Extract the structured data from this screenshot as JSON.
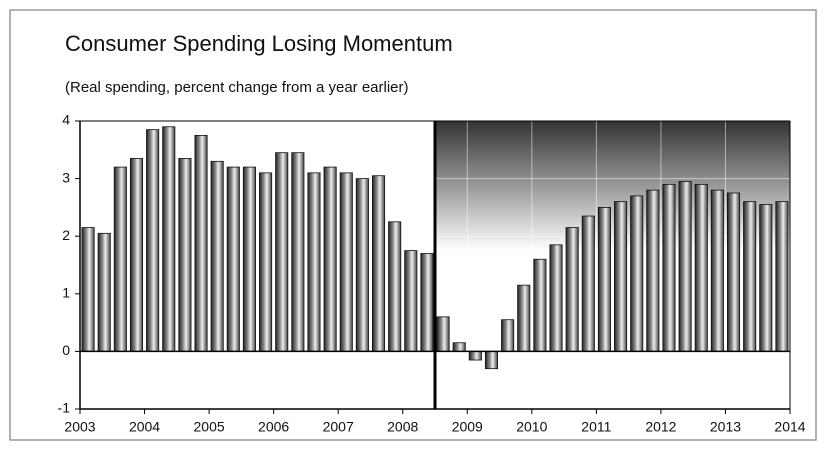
{
  "chart_data": {
    "type": "bar",
    "title": "Consumer Spending Losing Momentum",
    "subtitle": "(Real spending, percent change from a year earlier)",
    "categories": [
      null,
      null,
      null,
      null,
      null,
      null,
      null,
      null,
      null,
      null,
      null,
      null,
      null,
      null,
      null,
      null,
      null,
      null,
      null,
      null,
      null,
      null,
      null,
      null,
      null,
      null,
      null,
      null,
      null,
      null,
      null,
      null,
      null,
      null,
      null,
      null,
      null,
      null,
      null,
      null,
      null,
      null,
      null,
      null
    ],
    "values": [
      2.15,
      2.05,
      3.2,
      3.35,
      3.85,
      3.9,
      3.35,
      3.75,
      3.3,
      3.2,
      3.2,
      3.1,
      3.45,
      3.45,
      3.1,
      3.2,
      3.1,
      3.0,
      3.05,
      2.25,
      1.75,
      1.7,
      0.6,
      0.15,
      -0.15,
      -0.3,
      0.55,
      1.15,
      1.6,
      1.85,
      2.15,
      2.35,
      2.5,
      2.6,
      2.7,
      2.8,
      2.9,
      2.95,
      2.9,
      2.8,
      2.75,
      2.6,
      2.55,
      2.6
    ],
    "color": "#555555",
    "xlim": [
      2003,
      2014
    ],
    "xticks": [
      2003,
      2004,
      2005,
      2006,
      2007,
      2008,
      2009,
      2010,
      2011,
      2012,
      2013,
      2014
    ],
    "ylim": [
      -1,
      4
    ],
    "yticks": [
      -1,
      0,
      1,
      2,
      3,
      4
    ],
    "shaded_from": 2008.5
  }
}
